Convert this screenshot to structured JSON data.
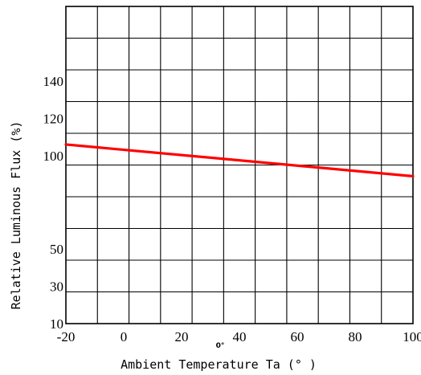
{
  "chart_data": {
    "type": "line",
    "title": "",
    "xlabel": "Ambient Temperature Ta (° )",
    "xlabel_mark": "0°",
    "ylabel": "Relative Luminous Flux  (%)",
    "x_ticks": [
      "-20",
      "0",
      "20",
      "40",
      "60",
      "80",
      "100"
    ],
    "x_tick_values": [
      -20,
      0,
      20,
      40,
      60,
      80,
      100
    ],
    "xlim": [
      -20,
      100
    ],
    "y_tick_labels": [
      "10",
      "30",
      "50",
      "100",
      "120",
      "140"
    ],
    "y_tick_values": [
      10,
      30,
      50,
      100,
      120,
      140
    ],
    "ylim": [
      10,
      180
    ],
    "grid": true,
    "series": [
      {
        "color": "#ff0000",
        "x": [
          -20,
          100
        ],
        "y": [
          106,
          89
        ]
      }
    ]
  }
}
